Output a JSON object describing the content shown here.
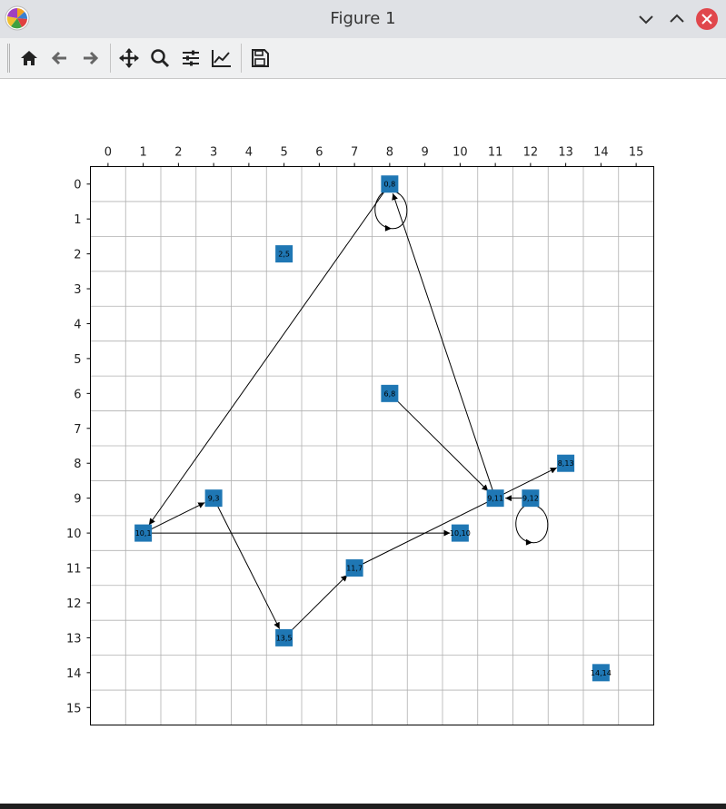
{
  "window": {
    "title": "Figure 1"
  },
  "toolbar": {
    "buttons": [
      {
        "name": "home-icon"
      },
      {
        "name": "back-arrow-icon"
      },
      {
        "name": "forward-arrow-icon"
      },
      {
        "name": "pan-move-icon"
      },
      {
        "name": "zoom-magnifier-icon"
      },
      {
        "name": "configure-subplots-icon"
      },
      {
        "name": "edit-axis-lines-icon"
      },
      {
        "name": "save-floppy-icon"
      }
    ]
  },
  "colors": {
    "node": "#1f77b4",
    "close": "#e0474c",
    "grid": "#b0b0b0"
  },
  "chart_data": {
    "type": "scatter",
    "x_ticks": [
      0,
      1,
      2,
      3,
      4,
      5,
      6,
      7,
      8,
      9,
      10,
      11,
      12,
      13,
      14,
      15
    ],
    "y_ticks": [
      0,
      1,
      2,
      3,
      4,
      5,
      6,
      7,
      8,
      9,
      10,
      11,
      12,
      13,
      14,
      15
    ],
    "xlim": [
      -0.5,
      15.5
    ],
    "ylim": [
      15.5,
      -0.5
    ],
    "x_axis_position": "top",
    "y_inverted": true,
    "grid": true,
    "nodes": [
      {
        "label": "0,8",
        "row": 0,
        "col": 8
      },
      {
        "label": "2,5",
        "row": 2,
        "col": 5
      },
      {
        "label": "6,8",
        "row": 6,
        "col": 8
      },
      {
        "label": "8,13",
        "row": 8,
        "col": 13
      },
      {
        "label": "9,3",
        "row": 9,
        "col": 3
      },
      {
        "label": "9,11",
        "row": 9,
        "col": 11
      },
      {
        "label": "9,12",
        "row": 9,
        "col": 12
      },
      {
        "label": "10,1",
        "row": 10,
        "col": 1
      },
      {
        "label": "10,10",
        "row": 10,
        "col": 10
      },
      {
        "label": "11,7",
        "row": 11,
        "col": 7
      },
      {
        "label": "13,5",
        "row": 13,
        "col": 5
      },
      {
        "label": "14,14",
        "row": 14,
        "col": 14
      }
    ],
    "edges": [
      {
        "from": "0,8",
        "to": "10,1"
      },
      {
        "from": "9,11",
        "to": "0,8"
      },
      {
        "from": "6,8",
        "to": "9,11"
      },
      {
        "from": "9,12",
        "to": "9,11"
      },
      {
        "from": "10,1",
        "to": "9,3"
      },
      {
        "from": "10,1",
        "to": "10,10"
      },
      {
        "from": "9,3",
        "to": "13,5"
      },
      {
        "from": "13,5",
        "to": "11,7"
      },
      {
        "from": "11,7",
        "to": "8,13"
      }
    ],
    "self_loops": [
      "0,8",
      "9,12"
    ]
  }
}
